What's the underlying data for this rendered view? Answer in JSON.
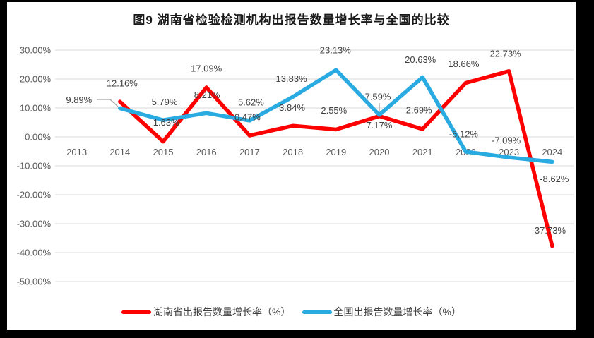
{
  "title": "图9 湖南省检验检测机构出报告数量增长率与全国的比较",
  "chart_data": {
    "type": "line",
    "categories": [
      "2013",
      "2014",
      "2015",
      "2016",
      "2017",
      "2018",
      "2019",
      "2020",
      "2021",
      "2022",
      "2023",
      "2024"
    ],
    "series": [
      {
        "name": "湖南省出报告数量增长率（%）",
        "color": "#FF0000",
        "x": [
          "2014",
          "2015",
          "2016",
          "2017",
          "2018",
          "2019",
          "2020",
          "2021",
          "2022",
          "2023",
          "2024"
        ],
        "values": [
          12.16,
          -1.63,
          17.09,
          0.47,
          3.84,
          2.55,
          7.17,
          2.69,
          18.66,
          22.73,
          -37.73
        ]
      },
      {
        "name": "全国出报告数量增长率（%）",
        "color": "#29ABE2",
        "x": [
          "2014",
          "2015",
          "2016",
          "2017",
          "2018",
          "2019",
          "2020",
          "2021",
          "2022",
          "2023",
          "2024"
        ],
        "values": [
          9.89,
          5.79,
          8.21,
          5.62,
          13.83,
          23.13,
          7.59,
          20.63,
          -5.12,
          -7.09,
          -8.62
        ]
      }
    ],
    "ylim": [
      -50,
      30
    ],
    "ytick_values": [
      30,
      20,
      10,
      0,
      -10,
      -20,
      -30,
      -40,
      -50
    ],
    "ytick_labels": [
      "30.00%",
      "20.00%",
      "10.00%",
      "0.00%",
      "-10.00%",
      "-20.00%",
      "-30.00%",
      "-40.00%",
      "-50.00%"
    ],
    "grid": true,
    "data_labels": true,
    "label_format": "0.00%",
    "legend_position": "bottom",
    "colors": {
      "gridline": "#D9D9D9",
      "axis_text": "#595959",
      "data_label_text": "#404040",
      "leader_line": "#A6A6A6"
    }
  }
}
